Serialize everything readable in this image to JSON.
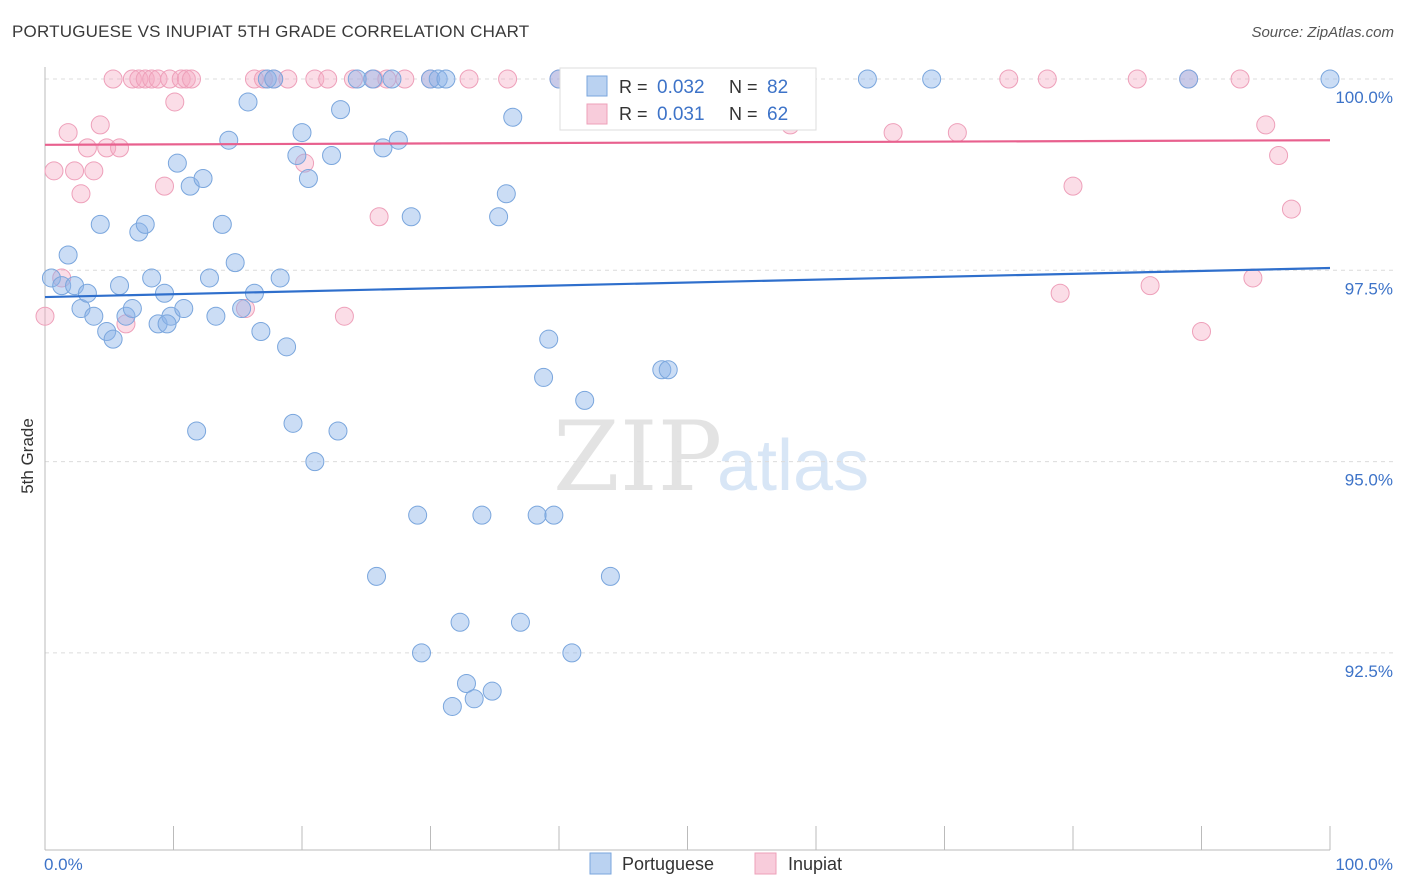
{
  "title": "PORTUGUESE VS INUPIAT 5TH GRADE CORRELATION CHART",
  "source": "Source: ZipAtlas.com",
  "watermark": {
    "zip": "ZIP",
    "atlas": "atlas"
  },
  "colors": {
    "blue_fill": "rgba(140,180,232,0.45)",
    "blue_stroke": "#7aa6dd",
    "blue_line": "#2f6fcc",
    "pink_fill": "rgba(244,170,195,0.40)",
    "pink_stroke": "#eea0ba",
    "pink_line": "#e8608e",
    "grid": "#dcdcdc",
    "label": "#3d73c8"
  },
  "legend_top": [
    {
      "r_label": "R =",
      "r_value": "0.032",
      "n_label": "N =",
      "n_value": "82",
      "color": "blue"
    },
    {
      "r_label": "R =",
      "r_value": "0.031",
      "n_label": "N =",
      "n_value": "62",
      "color": "pink"
    }
  ],
  "legend_bottom": [
    {
      "label": "Portuguese",
      "color": "blue"
    },
    {
      "label": "Inupiat",
      "color": "pink"
    }
  ],
  "chart_data": {
    "type": "scatter",
    "title": "PORTUGUESE VS INUPIAT 5TH GRADE CORRELATION CHART",
    "xlabel": "",
    "ylabel": "5th Grade",
    "xlim": [
      0,
      100
    ],
    "ylim": [
      90.3,
      100.25
    ],
    "x_tick_labels": [
      {
        "value": 0,
        "label": "0.0%"
      },
      {
        "value": 100,
        "label": "100.0%"
      }
    ],
    "y_tick_labels": [
      {
        "value": 100.0,
        "label": "100.0%"
      },
      {
        "value": 97.5,
        "label": "97.5%"
      },
      {
        "value": 95.0,
        "label": "95.0%"
      },
      {
        "value": 92.5,
        "label": "92.5%"
      }
    ],
    "grid": true,
    "legend_position": "top-center",
    "series": [
      {
        "name": "Portuguese",
        "color": "blue",
        "trend": {
          "x": [
            0,
            100
          ],
          "y": [
            97.15,
            97.53
          ]
        },
        "points": [
          [
            0.5,
            97.4
          ],
          [
            1.3,
            97.3
          ],
          [
            1.8,
            97.7
          ],
          [
            2.3,
            97.3
          ],
          [
            2.8,
            97.0
          ],
          [
            3.3,
            97.2
          ],
          [
            3.8,
            96.9
          ],
          [
            4.3,
            98.1
          ],
          [
            4.8,
            96.7
          ],
          [
            5.3,
            96.6
          ],
          [
            5.8,
            97.3
          ],
          [
            6.3,
            96.9
          ],
          [
            6.8,
            97.0
          ],
          [
            7.3,
            98.0
          ],
          [
            7.8,
            98.1
          ],
          [
            8.3,
            97.4
          ],
          [
            8.8,
            96.8
          ],
          [
            9.3,
            97.2
          ],
          [
            9.8,
            96.9
          ],
          [
            10.3,
            98.9
          ],
          [
            10.8,
            97.0
          ],
          [
            11.3,
            98.6
          ],
          [
            11.8,
            95.4
          ],
          [
            12.3,
            98.7
          ],
          [
            12.8,
            97.4
          ],
          [
            13.3,
            96.9
          ],
          [
            13.8,
            98.1
          ],
          [
            14.3,
            99.2
          ],
          [
            14.8,
            97.6
          ],
          [
            15.3,
            97.0
          ],
          [
            15.8,
            99.7
          ],
          [
            16.3,
            97.2
          ],
          [
            16.8,
            96.7
          ],
          [
            17.3,
            100.0
          ],
          [
            17.8,
            100.0
          ],
          [
            18.3,
            97.4
          ],
          [
            18.8,
            96.5
          ],
          [
            19.3,
            95.5
          ],
          [
            19.6,
            99.0
          ],
          [
            20.0,
            99.3
          ],
          [
            20.5,
            98.7
          ],
          [
            21.0,
            95.0
          ],
          [
            22.3,
            99.0
          ],
          [
            22.8,
            95.4
          ],
          [
            23.0,
            99.6
          ],
          [
            24.3,
            100.0
          ],
          [
            25.5,
            100.0
          ],
          [
            25.8,
            93.5
          ],
          [
            26.3,
            99.1
          ],
          [
            27.0,
            100.0
          ],
          [
            27.5,
            99.2
          ],
          [
            28.5,
            98.2
          ],
          [
            29.0,
            94.3
          ],
          [
            29.3,
            92.5
          ],
          [
            30.0,
            100.0
          ],
          [
            30.6,
            100.0
          ],
          [
            31.2,
            100.0
          ],
          [
            31.7,
            91.8
          ],
          [
            32.3,
            92.9
          ],
          [
            32.8,
            92.1
          ],
          [
            33.4,
            91.9
          ],
          [
            34.0,
            94.3
          ],
          [
            34.8,
            92.0
          ],
          [
            35.3,
            98.2
          ],
          [
            35.9,
            98.5
          ],
          [
            36.4,
            99.5
          ],
          [
            37.0,
            92.9
          ],
          [
            38.3,
            94.3
          ],
          [
            38.8,
            96.1
          ],
          [
            39.2,
            96.6
          ],
          [
            39.6,
            94.3
          ],
          [
            40.0,
            100.0
          ],
          [
            41.0,
            92.5
          ],
          [
            42.0,
            95.8
          ],
          [
            44.0,
            93.5
          ],
          [
            48.0,
            96.2
          ],
          [
            48.5,
            96.2
          ],
          [
            64.0,
            100.0
          ],
          [
            69.0,
            100.0
          ],
          [
            89.0,
            100.0
          ],
          [
            100.0,
            100.0
          ],
          [
            9.5,
            96.8
          ]
        ]
      },
      {
        "name": "Inupiat",
        "color": "pink",
        "trend": {
          "x": [
            0,
            100
          ],
          "y": [
            99.14,
            99.2
          ]
        },
        "points": [
          [
            0.0,
            96.9
          ],
          [
            0.7,
            98.8
          ],
          [
            1.3,
            97.4
          ],
          [
            1.8,
            99.3
          ],
          [
            2.3,
            98.8
          ],
          [
            2.8,
            98.5
          ],
          [
            3.3,
            99.1
          ],
          [
            3.8,
            98.8
          ],
          [
            4.3,
            99.4
          ],
          [
            4.8,
            99.1
          ],
          [
            5.3,
            100.0
          ],
          [
            5.8,
            99.1
          ],
          [
            6.3,
            96.8
          ],
          [
            6.8,
            100.0
          ],
          [
            7.3,
            100.0
          ],
          [
            7.8,
            100.0
          ],
          [
            8.3,
            100.0
          ],
          [
            8.8,
            100.0
          ],
          [
            9.3,
            98.6
          ],
          [
            9.7,
            100.0
          ],
          [
            10.1,
            99.7
          ],
          [
            10.6,
            100.0
          ],
          [
            11.0,
            100.0
          ],
          [
            11.4,
            100.0
          ],
          [
            15.6,
            97.0
          ],
          [
            16.3,
            100.0
          ],
          [
            17.0,
            100.0
          ],
          [
            17.8,
            100.0
          ],
          [
            18.9,
            100.0
          ],
          [
            20.2,
            98.9
          ],
          [
            21.0,
            100.0
          ],
          [
            22.0,
            100.0
          ],
          [
            23.3,
            96.9
          ],
          [
            24.0,
            100.0
          ],
          [
            25.6,
            100.0
          ],
          [
            26.0,
            98.2
          ],
          [
            26.6,
            100.0
          ],
          [
            28.0,
            100.0
          ],
          [
            30.0,
            100.0
          ],
          [
            33.0,
            100.0
          ],
          [
            36.0,
            100.0
          ],
          [
            40.0,
            100.0
          ],
          [
            45.0,
            100.0
          ],
          [
            51.0,
            100.0
          ],
          [
            56.0,
            100.0
          ],
          [
            58.0,
            99.4
          ],
          [
            59.0,
            100.0
          ],
          [
            66.0,
            99.3
          ],
          [
            71.0,
            99.3
          ],
          [
            75.0,
            100.0
          ],
          [
            78.0,
            100.0
          ],
          [
            79.0,
            97.2
          ],
          [
            80.0,
            98.6
          ],
          [
            85.0,
            100.0
          ],
          [
            86.0,
            97.3
          ],
          [
            89.0,
            100.0
          ],
          [
            90.0,
            96.7
          ],
          [
            93.0,
            100.0
          ],
          [
            94.0,
            97.4
          ],
          [
            95.0,
            99.4
          ],
          [
            96.0,
            99.0
          ],
          [
            97.0,
            98.3
          ]
        ]
      }
    ]
  }
}
